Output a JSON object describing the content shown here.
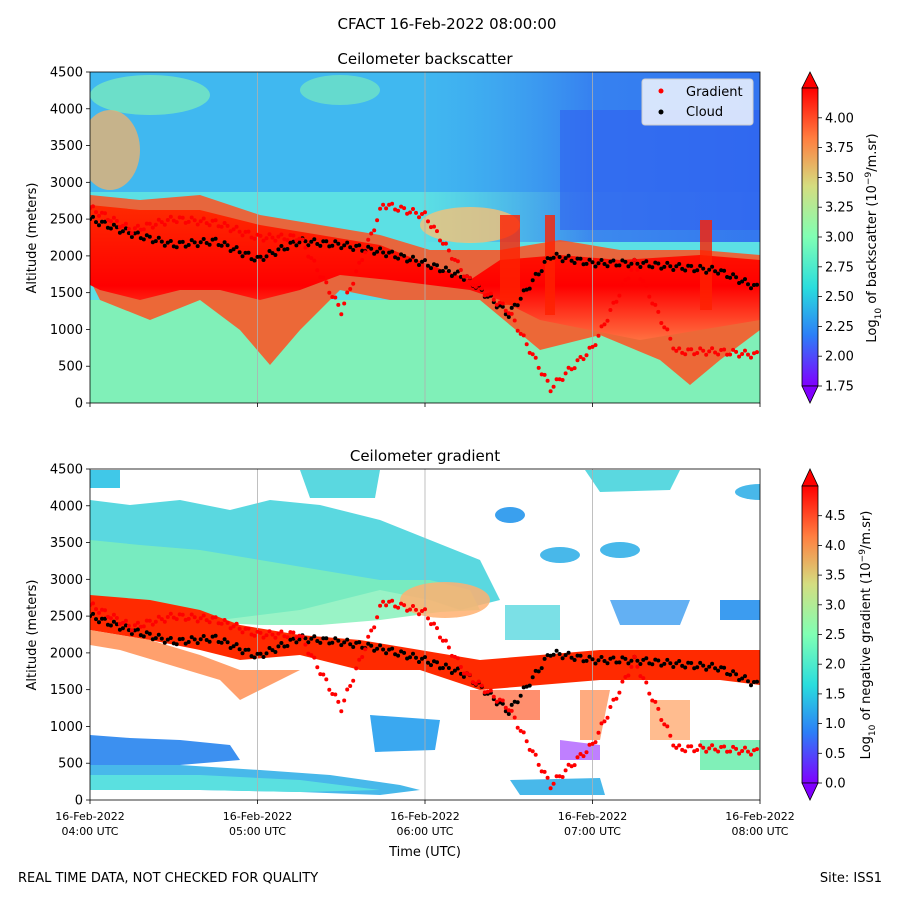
{
  "figure": {
    "suptitle": "CFACT 16-Feb-2022 08:00:00",
    "footer_left": "REAL TIME DATA, NOT CHECKED FOR QUALITY",
    "footer_right": "Site: ISS1"
  },
  "colors": {
    "gradient_marker": "#ff0000",
    "cloud_marker": "#000000",
    "rainbow": [
      "#8000ff",
      "#2c7ef7",
      "#2adddd",
      "#80ffb4",
      "#d4dd80",
      "#ff7f40",
      "#ff0000"
    ]
  },
  "chart_data": [
    {
      "type": "heatmap",
      "title": "Ceilometer backscatter",
      "xlabel": "",
      "ylabel": "Altitude (meters)",
      "xlim": [
        "16-Feb-2022 04:00 UTC",
        "16-Feb-2022 08:00 UTC"
      ],
      "ylim": [
        0,
        4500
      ],
      "yticks": [
        "0",
        "500",
        "1000",
        "1500",
        "2000",
        "2500",
        "3000",
        "3500",
        "4000",
        "4500"
      ],
      "xticks_shown": false,
      "grid": "vertical lines at hourly ticks",
      "legend": {
        "placement": "top-right",
        "entries": [
          {
            "label": "Gradient",
            "color": "#ff0000"
          },
          {
            "label": "Cloud",
            "color": "#000000"
          }
        ]
      },
      "colorbar": {
        "label": "Log10 of backscatter (10^-9/m.sr)",
        "label_parts": {
          "a": "Log",
          "a_sub": "10",
          "b": " of backscatter (10",
          "b_sup": "−9",
          "c": "/m.sr)"
        },
        "range": [
          1.75,
          4.25
        ],
        "ticks": [
          "1.75",
          "2.00",
          "2.25",
          "2.50",
          "2.75",
          "3.00",
          "3.25",
          "3.50",
          "3.75",
          "4.00"
        ],
        "extend": "both"
      },
      "series": [
        {
          "name": "Cloud",
          "x_hours_utc": [
            4.0,
            4.25,
            4.5,
            4.75,
            5.0,
            5.25,
            5.5,
            5.75,
            6.0,
            6.25,
            6.5,
            6.75,
            7.0,
            7.25,
            7.5,
            7.75,
            8.0
          ],
          "y": [
            2500,
            2300,
            2150,
            2200,
            1950,
            2200,
            2150,
            2050,
            1900,
            1700,
            1200,
            2000,
            1900,
            1900,
            1850,
            1800,
            1550
          ]
        },
        {
          "name": "Gradient",
          "x_hours_utc": [
            4.0,
            4.25,
            4.5,
            4.75,
            5.0,
            5.25,
            5.5,
            5.75,
            6.0,
            6.25,
            6.5,
            6.75,
            7.0,
            7.25,
            7.5,
            7.75,
            8.0
          ],
          "y": [
            2650,
            2350,
            2500,
            2450,
            2250,
            2250,
            1250,
            2700,
            2550,
            1700,
            1250,
            200,
            750,
            1900,
            700,
            700,
            650
          ]
        }
      ]
    },
    {
      "type": "heatmap",
      "title": "Ceilometer gradient",
      "xlabel": "Time (UTC)",
      "ylabel": "Altitude (meters)",
      "xlim": [
        "16-Feb-2022 04:00 UTC",
        "16-Feb-2022 08:00 UTC"
      ],
      "ylim": [
        0,
        4500
      ],
      "yticks": [
        "0",
        "500",
        "1000",
        "1500",
        "2000",
        "2500",
        "3000",
        "3500",
        "4000",
        "4500"
      ],
      "xticks": [
        {
          "line1": "16-Feb-2022",
          "line2": "04:00 UTC"
        },
        {
          "line1": "16-Feb-2022",
          "line2": "05:00 UTC"
        },
        {
          "line1": "16-Feb-2022",
          "line2": "06:00 UTC"
        },
        {
          "line1": "16-Feb-2022",
          "line2": "07:00 UTC"
        },
        {
          "line1": "16-Feb-2022",
          "line2": "08:00 UTC"
        }
      ],
      "grid": "vertical lines at hourly ticks",
      "colorbar": {
        "label": "Log10 of negative gradient (10^-9/m.sr)",
        "label_parts": {
          "a": "Log",
          "a_sub": "10",
          "b": " of negative gradient (10",
          "b_sup": "−9",
          "c": "/m.sr)"
        },
        "range": [
          0,
          5
        ],
        "ticks": [
          "0.0",
          "0.5",
          "1.0",
          "1.5",
          "2.0",
          "2.5",
          "3.0",
          "3.5",
          "4.0",
          "4.5"
        ],
        "extend": "both"
      }
    }
  ]
}
